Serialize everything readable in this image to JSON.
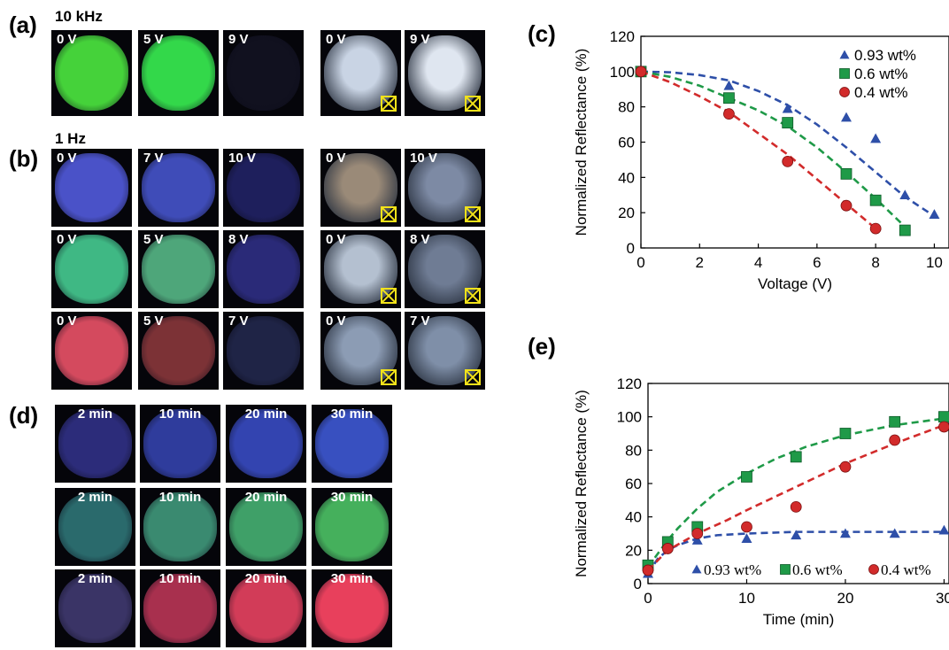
{
  "panels": {
    "a": {
      "label": "(a)",
      "condition": "10 kHz",
      "tiles": [
        {
          "text": "0 V",
          "color": "#45d23a"
        },
        {
          "text": "5 V",
          "color": "#33d84a"
        },
        {
          "text": "9 V",
          "color": "#11111f"
        }
      ],
      "pom_tiles": [
        {
          "text": "0 V",
          "color": "#c9d4e4"
        },
        {
          "text": "9 V",
          "color": "#dfe6f0"
        }
      ]
    },
    "b": {
      "label": "(b)",
      "condition": "1 Hz",
      "rows": [
        {
          "tiles": [
            {
              "text": "0 V",
              "color": "#4a52c8"
            },
            {
              "text": "7 V",
              "color": "#3f4cb8"
            },
            {
              "text": "10 V",
              "color": "#1e1f5c"
            }
          ],
          "pom_tiles": [
            {
              "text": "0 V",
              "color": "#9a8a78"
            },
            {
              "text": "10 V",
              "color": "#7d8aa4"
            }
          ]
        },
        {
          "tiles": [
            {
              "text": "0 V",
              "color": "#3fb884"
            },
            {
              "text": "5 V",
              "color": "#4ea67a"
            },
            {
              "text": "8 V",
              "color": "#2a2a78"
            }
          ],
          "pom_tiles": [
            {
              "text": "0 V",
              "color": "#b4c0d0"
            },
            {
              "text": "8 V",
              "color": "#6f7c94"
            }
          ]
        },
        {
          "tiles": [
            {
              "text": "0 V",
              "color": "#d44a5e"
            },
            {
              "text": "5 V",
              "color": "#7c3236"
            },
            {
              "text": "7 V",
              "color": "#1f2446"
            }
          ],
          "pom_tiles": [
            {
              "text": "0 V",
              "color": "#8c9cb4"
            },
            {
              "text": "7 V",
              "color": "#7f8fa8"
            }
          ]
        }
      ]
    },
    "d": {
      "label": "(d)",
      "rows": [
        {
          "tiles": [
            {
              "text": "2 min",
              "color": "#2c2c7a"
            },
            {
              "text": "10 min",
              "color": "#2f3c9c"
            },
            {
              "text": "20 min",
              "color": "#3344b0"
            },
            {
              "text": "30 min",
              "color": "#3850c0"
            }
          ]
        },
        {
          "tiles": [
            {
              "text": "2 min",
              "color": "#2a6a6c"
            },
            {
              "text": "10 min",
              "color": "#3a8a70"
            },
            {
              "text": "20 min",
              "color": "#3fa068"
            },
            {
              "text": "30 min",
              "color": "#45b05c"
            }
          ]
        },
        {
          "tiles": [
            {
              "text": "2 min",
              "color": "#3a3466"
            },
            {
              "text": "10 min",
              "color": "#a8304e"
            },
            {
              "text": "20 min",
              "color": "#d23c58"
            },
            {
              "text": "30 min",
              "color": "#e8405c"
            }
          ]
        }
      ]
    }
  },
  "chart_data": [
    {
      "panel_label": "(c)",
      "type": "scatter",
      "xlabel": "Voltage (V)",
      "ylabel": "Normalized Reflectance (%)",
      "xlim": [
        0,
        10.5
      ],
      "ylim": [
        0,
        120
      ],
      "xticks": [
        "0",
        "2",
        "4",
        "6",
        "8",
        "10"
      ],
      "yticks": [
        "0",
        "20",
        "40",
        "60",
        "80",
        "100",
        "120"
      ],
      "legend_position": "top-right",
      "series": [
        {
          "name": "0.93 wt%",
          "marker": "triangle",
          "color": "#2e4fa8",
          "x": [
            0,
            3,
            5,
            7,
            8,
            9,
            10
          ],
          "y": [
            100,
            92,
            79,
            74,
            62,
            30,
            19
          ],
          "fit_x": [
            0,
            1,
            2,
            3,
            4,
            5,
            6,
            7,
            8,
            9,
            10
          ],
          "fit_y": [
            100,
            99.6,
            98,
            95,
            89,
            81,
            70,
            57,
            43,
            29,
            18
          ]
        },
        {
          "name": "0.6 wt%",
          "marker": "square",
          "color": "#1f9a48",
          "x": [
            0,
            3,
            5,
            7,
            8,
            9
          ],
          "y": [
            100,
            85,
            71,
            42,
            27,
            10
          ],
          "fit_x": [
            0,
            1,
            2,
            3,
            4,
            5,
            6,
            7,
            8,
            9
          ],
          "fit_y": [
            100,
            97,
            92,
            85,
            78,
            69,
            57,
            43,
            28,
            12
          ]
        },
        {
          "name": "0.4 wt%",
          "marker": "circle",
          "color": "#d22b2b",
          "x": [
            0,
            3,
            5,
            7,
            8
          ],
          "y": [
            100,
            76,
            49,
            24,
            11
          ],
          "fit_x": [
            0,
            1,
            2,
            3,
            4,
            5,
            6,
            7,
            8
          ],
          "fit_y": [
            100,
            94,
            86,
            77,
            65,
            53,
            39,
            25,
            11
          ]
        }
      ]
    },
    {
      "panel_label": "(e)",
      "type": "scatter",
      "xlabel": "Time (min)",
      "ylabel": "Normalized Reflectance (%)",
      "xlim": [
        0,
        30.5
      ],
      "ylim": [
        0,
        120
      ],
      "xticks": [
        "0",
        "10",
        "20",
        "30"
      ],
      "yticks": [
        "0",
        "20",
        "40",
        "60",
        "80",
        "100",
        "120"
      ],
      "legend_position": "bottom",
      "series": [
        {
          "name": "0.93 wt%",
          "marker": "triangle",
          "color": "#2e4fa8",
          "x": [
            0,
            2,
            5,
            10,
            15,
            20,
            25,
            30
          ],
          "y": [
            6,
            22,
            26,
            27,
            29,
            30,
            30,
            32
          ],
          "fit_x": [
            0,
            1,
            2,
            3,
            5,
            7,
            10,
            15,
            20,
            25,
            30
          ],
          "fit_y": [
            6,
            15,
            20,
            23,
            27,
            29,
            30,
            31,
            31,
            31,
            31
          ]
        },
        {
          "name": "0.6 wt%",
          "marker": "square",
          "color": "#1f9a48",
          "x": [
            0,
            2,
            5,
            10,
            15,
            20,
            25,
            30
          ],
          "y": [
            11,
            25,
            34,
            64,
            76,
            90,
            97,
            100
          ],
          "fit_x": [
            0,
            1,
            2,
            3,
            5,
            7,
            10,
            13,
            16,
            20,
            25,
            30
          ],
          "fit_y": [
            10,
            18,
            26,
            33,
            45,
            55,
            66,
            75,
            82,
            89,
            95,
            99
          ]
        },
        {
          "name": "0.4 wt%",
          "marker": "circle",
          "color": "#d22b2b",
          "x": [
            0,
            2,
            5,
            10,
            15,
            20,
            25,
            30
          ],
          "y": [
            8,
            21,
            30,
            34,
            46,
            70,
            86,
            94
          ],
          "fit_x": [
            0,
            2,
            5,
            8,
            10,
            15,
            20,
            25,
            30
          ],
          "fit_y": [
            8,
            20,
            30,
            38,
            44,
            58,
            72,
            84,
            95
          ]
        }
      ]
    }
  ]
}
